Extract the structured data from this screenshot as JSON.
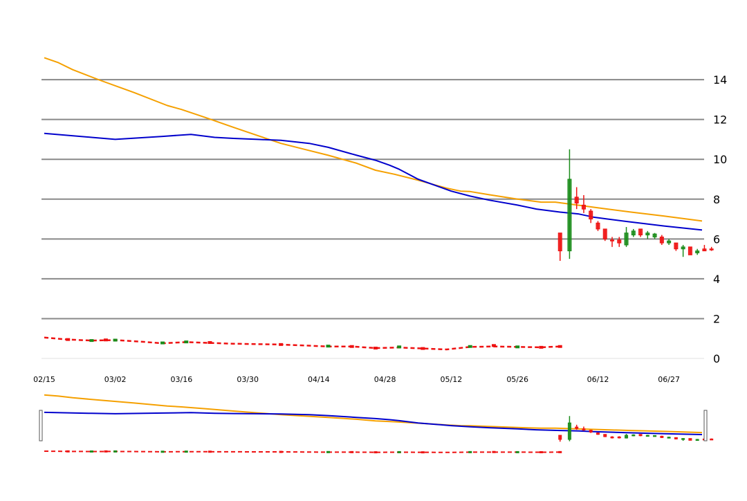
{
  "chart_data": {
    "type": "candlestick",
    "colors": {
      "up": "#1a8c1a",
      "down": "#ee1111",
      "ma_blue": "#0000cc",
      "ma_orange": "#f5a000",
      "grid": "#888888"
    },
    "y_axis": {
      "ticks": [
        "0",
        "2",
        "4",
        "6",
        "8",
        "10",
        "12",
        "14"
      ],
      "ylim": [
        0,
        16
      ],
      "position": "right"
    },
    "x_axis": {
      "ticks": [
        {
          "label": "02/15",
          "t": 0
        },
        {
          "label": "03/02",
          "t": 15
        },
        {
          "label": "03/16",
          "t": 29
        },
        {
          "label": "03/30",
          "t": 43
        },
        {
          "label": "04/14",
          "t": 58
        },
        {
          "label": "04/28",
          "t": 72
        },
        {
          "label": "05/12",
          "t": 86
        },
        {
          "label": "05/26",
          "t": 100
        },
        {
          "label": "06/12",
          "t": 117
        },
        {
          "label": "06/27",
          "t": 132
        }
      ],
      "range": [
        0,
        139
      ]
    },
    "ma_blue": {
      "t": [
        0,
        10,
        15,
        25,
        31,
        36,
        40,
        45,
        50,
        56,
        60,
        66,
        70,
        73,
        75,
        79,
        86,
        90,
        94,
        100,
        104,
        109,
        113,
        116,
        119,
        123,
        131,
        139
      ],
      "v": [
        11.3,
        11.1,
        11.0,
        11.15,
        11.25,
        11.1,
        11.05,
        11.0,
        10.95,
        10.8,
        10.6,
        10.2,
        9.95,
        9.7,
        9.5,
        9.0,
        8.4,
        8.15,
        7.95,
        7.7,
        7.5,
        7.35,
        7.25,
        7.1,
        7.0,
        6.88,
        6.65,
        6.45
      ]
    },
    "ma_orange": {
      "t": [
        0,
        3,
        6,
        12,
        19,
        26,
        29,
        34,
        40,
        45,
        50,
        55,
        60,
        66,
        70,
        74,
        79,
        85,
        88,
        90,
        94,
        100,
        105,
        108,
        112,
        119,
        124,
        131,
        139
      ],
      "v": [
        15.1,
        14.85,
        14.5,
        13.95,
        13.35,
        12.7,
        12.5,
        12.1,
        11.6,
        11.2,
        10.8,
        10.5,
        10.2,
        9.8,
        9.45,
        9.25,
        8.95,
        8.55,
        8.4,
        8.38,
        8.22,
        8.0,
        7.85,
        7.85,
        7.72,
        7.5,
        7.35,
        7.15,
        6.9
      ]
    },
    "dashed_line": {
      "t": [
        0,
        5,
        10,
        15,
        20,
        25,
        30,
        35,
        40,
        45,
        50,
        55,
        60,
        65,
        70,
        75,
        80,
        85,
        90,
        95,
        100,
        105,
        109
      ],
      "v": [
        1.05,
        0.95,
        0.9,
        0.92,
        0.85,
        0.76,
        0.82,
        0.78,
        0.74,
        0.72,
        0.7,
        0.65,
        0.6,
        0.6,
        0.52,
        0.55,
        0.5,
        0.45,
        0.58,
        0.6,
        0.58,
        0.56,
        0.6
      ],
      "markers": [
        {
          "t": 5,
          "v": 0.95,
          "c": "down"
        },
        {
          "t": 10,
          "v": 0.9,
          "c": "up"
        },
        {
          "t": 13,
          "v": 0.93,
          "c": "down"
        },
        {
          "t": 15,
          "v": 0.92,
          "c": "up"
        },
        {
          "t": 25,
          "v": 0.78,
          "c": "up"
        },
        {
          "t": 30,
          "v": 0.83,
          "c": "up"
        },
        {
          "t": 35,
          "v": 0.8,
          "c": "down"
        },
        {
          "t": 50,
          "v": 0.7,
          "c": "down"
        },
        {
          "t": 60,
          "v": 0.62,
          "c": "up"
        },
        {
          "t": 65,
          "v": 0.6,
          "c": "down"
        },
        {
          "t": 70,
          "v": 0.52,
          "c": "down"
        },
        {
          "t": 75,
          "v": 0.58,
          "c": "up"
        },
        {
          "t": 80,
          "v": 0.5,
          "c": "down"
        },
        {
          "t": 90,
          "v": 0.6,
          "c": "up"
        },
        {
          "t": 95,
          "v": 0.65,
          "c": "down"
        },
        {
          "t": 100,
          "v": 0.58,
          "c": "up"
        },
        {
          "t": 105,
          "v": 0.56,
          "c": "down"
        },
        {
          "t": 109,
          "v": 0.6,
          "c": "down"
        }
      ]
    },
    "candles": [
      {
        "t": 109,
        "o": 6.3,
        "c": 5.4,
        "h": 6.3,
        "l": 4.9
      },
      {
        "t": 111,
        "o": 5.4,
        "c": 9.0,
        "h": 10.5,
        "l": 5.0
      },
      {
        "t": 112.5,
        "o": 8.1,
        "c": 7.8,
        "h": 8.6,
        "l": 7.5
      },
      {
        "t": 114,
        "o": 7.7,
        "c": 7.5,
        "h": 8.2,
        "l": 7.3
      },
      {
        "t": 115.5,
        "o": 7.4,
        "c": 7.0,
        "h": 7.5,
        "l": 6.8
      },
      {
        "t": 117,
        "o": 6.8,
        "c": 6.5,
        "h": 6.9,
        "l": 6.4
      },
      {
        "t": 118.5,
        "o": 6.5,
        "c": 6.0,
        "h": 6.5,
        "l": 5.9
      },
      {
        "t": 120,
        "o": 5.95,
        "c": 5.9,
        "h": 6.1,
        "l": 5.6
      },
      {
        "t": 121.5,
        "o": 5.95,
        "c": 5.8,
        "h": 6.1,
        "l": 5.6
      },
      {
        "t": 123,
        "o": 5.7,
        "c": 6.3,
        "h": 6.6,
        "l": 5.6
      },
      {
        "t": 124.5,
        "o": 6.2,
        "c": 6.4,
        "h": 6.5,
        "l": 6.1
      },
      {
        "t": 126,
        "o": 6.5,
        "c": 6.2,
        "h": 6.5,
        "l": 6.1
      },
      {
        "t": 127.5,
        "o": 6.2,
        "c": 6.3,
        "h": 6.4,
        "l": 6.0
      },
      {
        "t": 129,
        "o": 6.1,
        "c": 6.25,
        "h": 6.3,
        "l": 6.0
      },
      {
        "t": 130.5,
        "o": 6.1,
        "c": 5.8,
        "h": 6.2,
        "l": 5.7
      },
      {
        "t": 132,
        "o": 5.8,
        "c": 5.9,
        "h": 6.0,
        "l": 5.7
      },
      {
        "t": 133.5,
        "o": 5.8,
        "c": 5.5,
        "h": 5.8,
        "l": 5.4
      },
      {
        "t": 135,
        "o": 5.5,
        "c": 5.6,
        "h": 5.7,
        "l": 5.1
      },
      {
        "t": 136.5,
        "o": 5.6,
        "c": 5.2,
        "h": 5.6,
        "l": 5.2
      },
      {
        "t": 138,
        "o": 5.3,
        "c": 5.4,
        "h": 5.5,
        "l": 5.2
      },
      {
        "t": 139.5,
        "o": 5.5,
        "c": 5.4,
        "h": 5.7,
        "l": 5.4
      },
      {
        "t": 141,
        "o": 5.5,
        "c": 5.45,
        "h": 5.6,
        "l": 5.4
      }
    ]
  }
}
